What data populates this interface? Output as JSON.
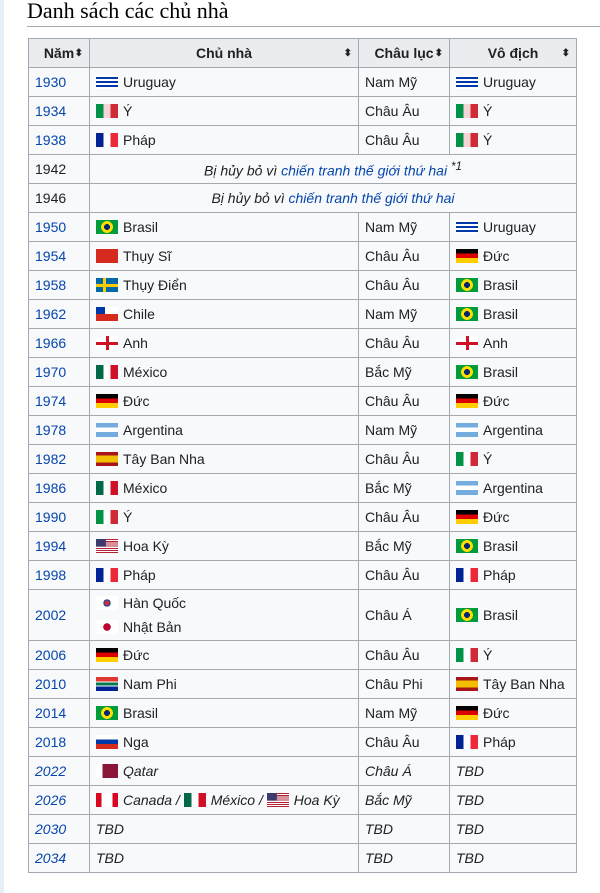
{
  "title": "Danh sách các chủ nhà",
  "headers": [
    "Năm",
    "Chủ nhà",
    "Châu lục",
    "Vô địch"
  ],
  "cancelled": {
    "prefix": "Bị hủy bỏ vì ",
    "link": "chiến tranh thế giới thứ hai",
    "note": "*1"
  },
  "rows": [
    {
      "year": "1930",
      "host": "Uruguay",
      "hf": "uru",
      "cont": "Nam Mỹ",
      "win": "Uruguay",
      "wf": "uru"
    },
    {
      "year": "1934",
      "host": "Ý",
      "hf": "ita",
      "cont": "Châu Âu",
      "win": "Ý",
      "wf": "ita"
    },
    {
      "year": "1938",
      "host": "Pháp",
      "hf": "fra",
      "cont": "Châu Âu",
      "win": "Ý",
      "wf": "ita"
    },
    {
      "year": "1942",
      "cancel": true,
      "note": true
    },
    {
      "year": "1946",
      "cancel": true
    },
    {
      "year": "1950",
      "host": "Brasil",
      "hf": "bra",
      "cont": "Nam Mỹ",
      "win": "Uruguay",
      "wf": "uru"
    },
    {
      "year": "1954",
      "host": "Thụy Sĩ",
      "hf": "sui",
      "cont": "Châu Âu",
      "win": "Đức",
      "wf": "ger"
    },
    {
      "year": "1958",
      "host": "Thụy Điển",
      "hf": "swe",
      "cont": "Châu Âu",
      "win": "Brasil",
      "wf": "bra"
    },
    {
      "year": "1962",
      "host": "Chile",
      "hf": "chi",
      "cont": "Nam Mỹ",
      "win": "Brasil",
      "wf": "bra"
    },
    {
      "year": "1966",
      "host": "Anh",
      "hf": "eng",
      "cont": "Châu Âu",
      "win": "Anh",
      "wf": "eng"
    },
    {
      "year": "1970",
      "host": "México",
      "hf": "mex",
      "cont": "Bắc Mỹ",
      "win": "Brasil",
      "wf": "bra"
    },
    {
      "year": "1974",
      "host": "Đức",
      "hf": "ger",
      "cont": "Châu Âu",
      "win": "Đức",
      "wf": "ger"
    },
    {
      "year": "1978",
      "host": "Argentina",
      "hf": "arg",
      "cont": "Nam Mỹ",
      "win": "Argentina",
      "wf": "arg"
    },
    {
      "year": "1982",
      "host": "Tây Ban Nha",
      "hf": "esp",
      "cont": "Châu Âu",
      "win": "Ý",
      "wf": "it2"
    },
    {
      "year": "1986",
      "host": "México",
      "hf": "mex",
      "cont": "Bắc Mỹ",
      "win": "Argentina",
      "wf": "arg"
    },
    {
      "year": "1990",
      "host": "Ý",
      "hf": "it2",
      "cont": "Châu Âu",
      "win": "Đức",
      "wf": "ger"
    },
    {
      "year": "1994",
      "host": "Hoa Kỳ",
      "hf": "usa",
      "cont": "Bắc Mỹ",
      "win": "Brasil",
      "wf": "bra"
    },
    {
      "year": "1998",
      "host": "Pháp",
      "hf": "fra",
      "cont": "Châu Âu",
      "win": "Pháp",
      "wf": "fra"
    },
    {
      "year": "2002",
      "host": "Hàn Quốc",
      "hf": "kor",
      "host2": "Nhật Bản",
      "hf2": "jpn",
      "cont": "Châu Á",
      "win": "Brasil",
      "wf": "bra"
    },
    {
      "year": "2006",
      "host": "Đức",
      "hf": "ger",
      "cont": "Châu Âu",
      "win": "Ý",
      "wf": "it2"
    },
    {
      "year": "2010",
      "host": "Nam Phi",
      "hf": "rsa",
      "cont": "Châu Phi",
      "win": "Tây Ban Nha",
      "wf": "esp"
    },
    {
      "year": "2014",
      "host": "Brasil",
      "hf": "bra",
      "cont": "Nam Mỹ",
      "win": "Đức",
      "wf": "ger"
    },
    {
      "year": "2018",
      "host": "Nga",
      "hf": "rus",
      "cont": "Châu Âu",
      "win": "Pháp",
      "wf": "fra"
    },
    {
      "year": "2022",
      "host": "Qatar",
      "hf": "qat",
      "cont": "Châu Á",
      "win": "TBD",
      "italic": true
    },
    {
      "year": "2026",
      "multi": [
        {
          "name": "Canada",
          "f": "can"
        },
        {
          "name": "México",
          "f": "mex"
        },
        {
          "name": "Hoa Kỳ",
          "f": "usa"
        }
      ],
      "sep": " / ",
      "cont": "Bắc Mỹ",
      "win": "TBD",
      "italic": true
    },
    {
      "year": "2030",
      "host": "TBD",
      "cont": "TBD",
      "win": "TBD",
      "italic": true
    },
    {
      "year": "2034",
      "host": "TBD",
      "cont": "TBD",
      "win": "TBD",
      "italic": true
    }
  ]
}
